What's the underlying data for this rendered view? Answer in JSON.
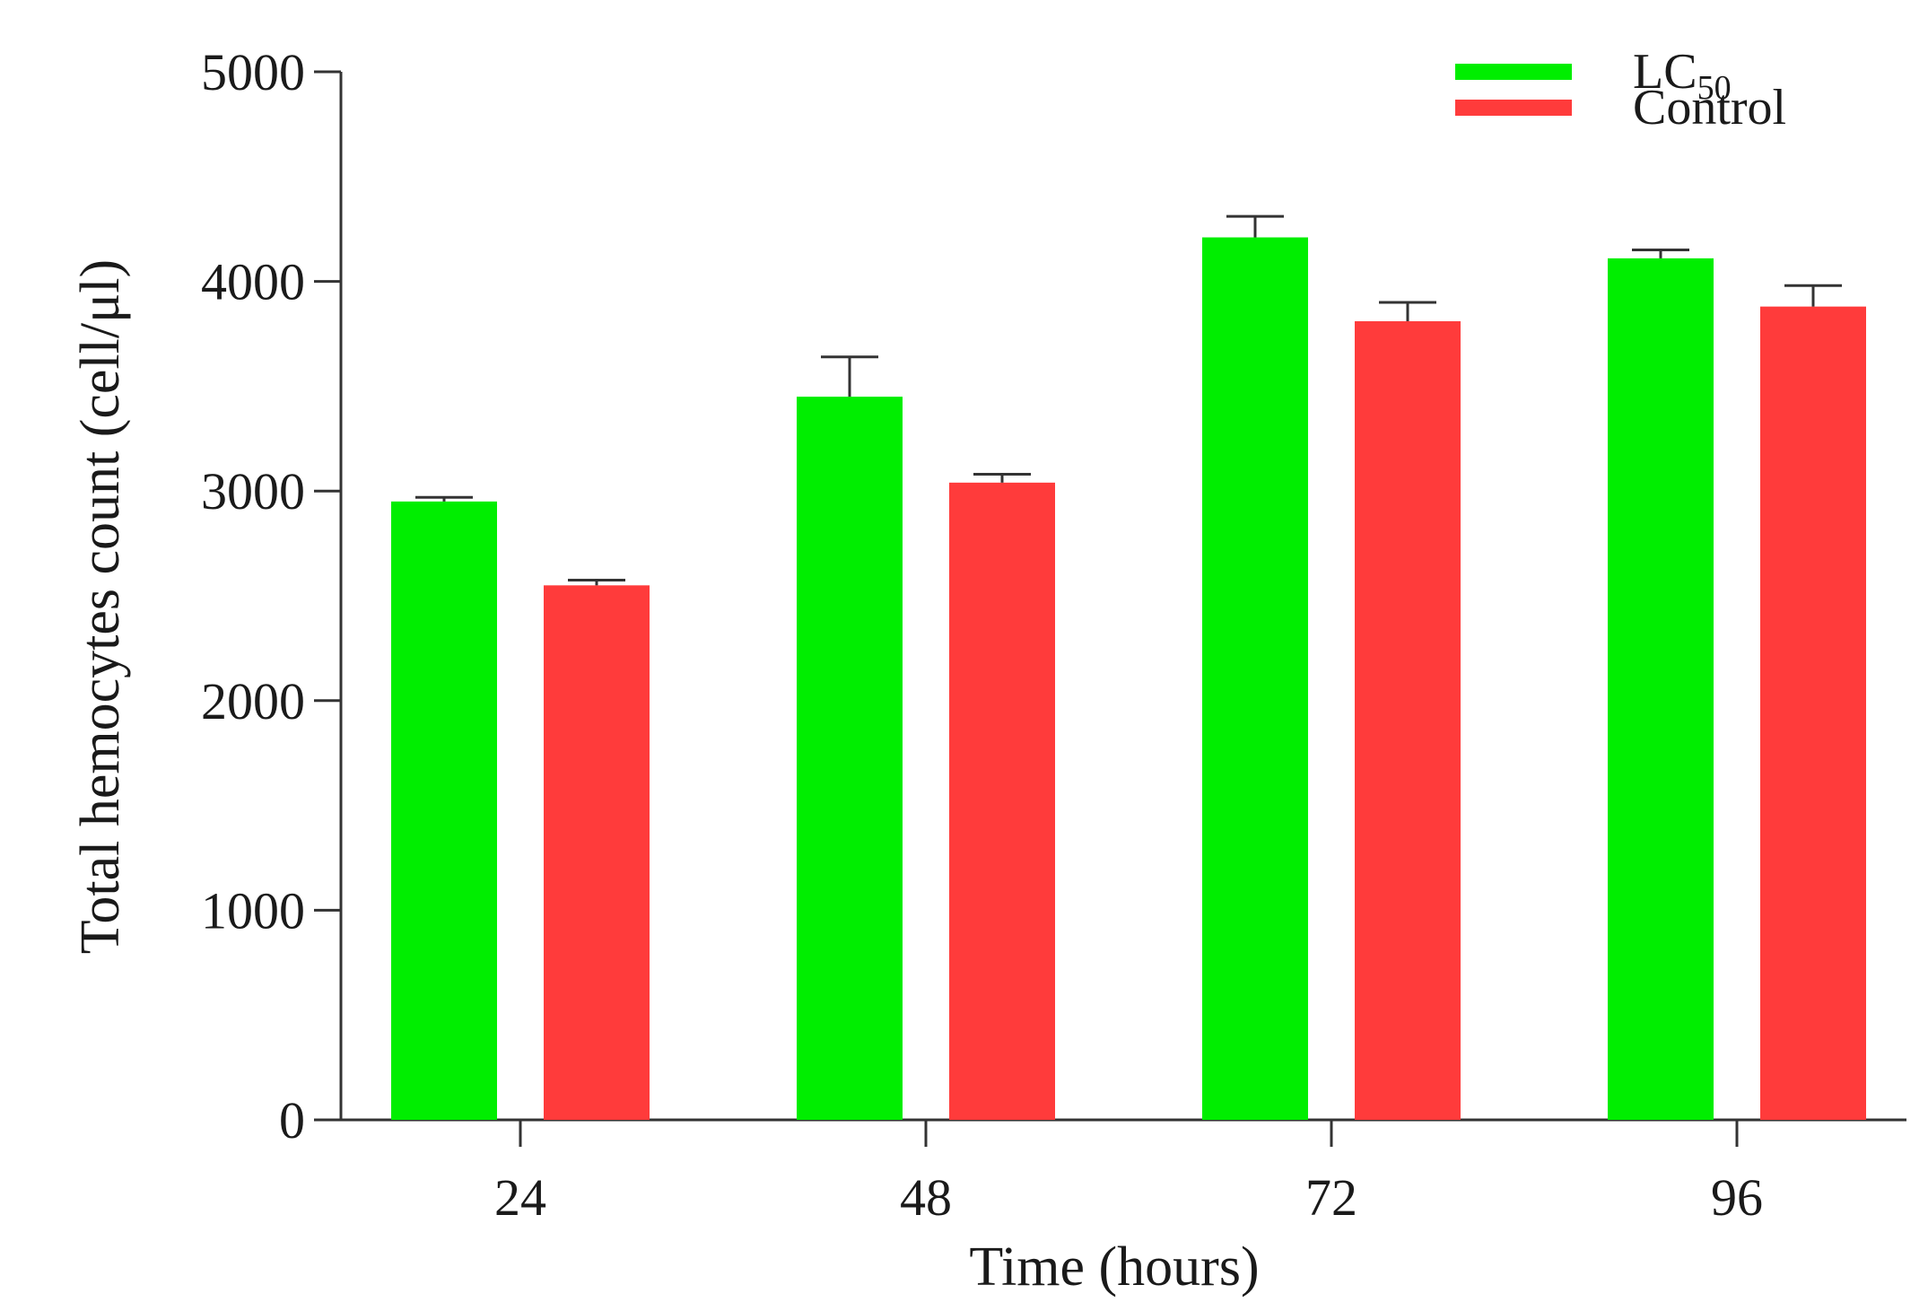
{
  "chart_data": {
    "type": "bar",
    "title": "",
    "xlabel": "Time (hours)",
    "ylabel": "Total hemocytes count (cell/μl)",
    "categories": [
      "24",
      "48",
      "72",
      "96"
    ],
    "ylim": [
      0,
      5000
    ],
    "yticks": [
      0,
      1000,
      2000,
      3000,
      4000,
      5000
    ],
    "grid": false,
    "legend_position": "top-right",
    "series": [
      {
        "name": "LC",
        "name_subscript": "50",
        "color": "#00ee00",
        "values": [
          2950,
          3450,
          4210,
          4110
        ],
        "errors": [
          20,
          190,
          100,
          40
        ]
      },
      {
        "name": "Control",
        "color": "#ff3b3b",
        "values": [
          2550,
          3040,
          3810,
          3880
        ],
        "errors": [
          25,
          40,
          90,
          100
        ]
      }
    ]
  }
}
